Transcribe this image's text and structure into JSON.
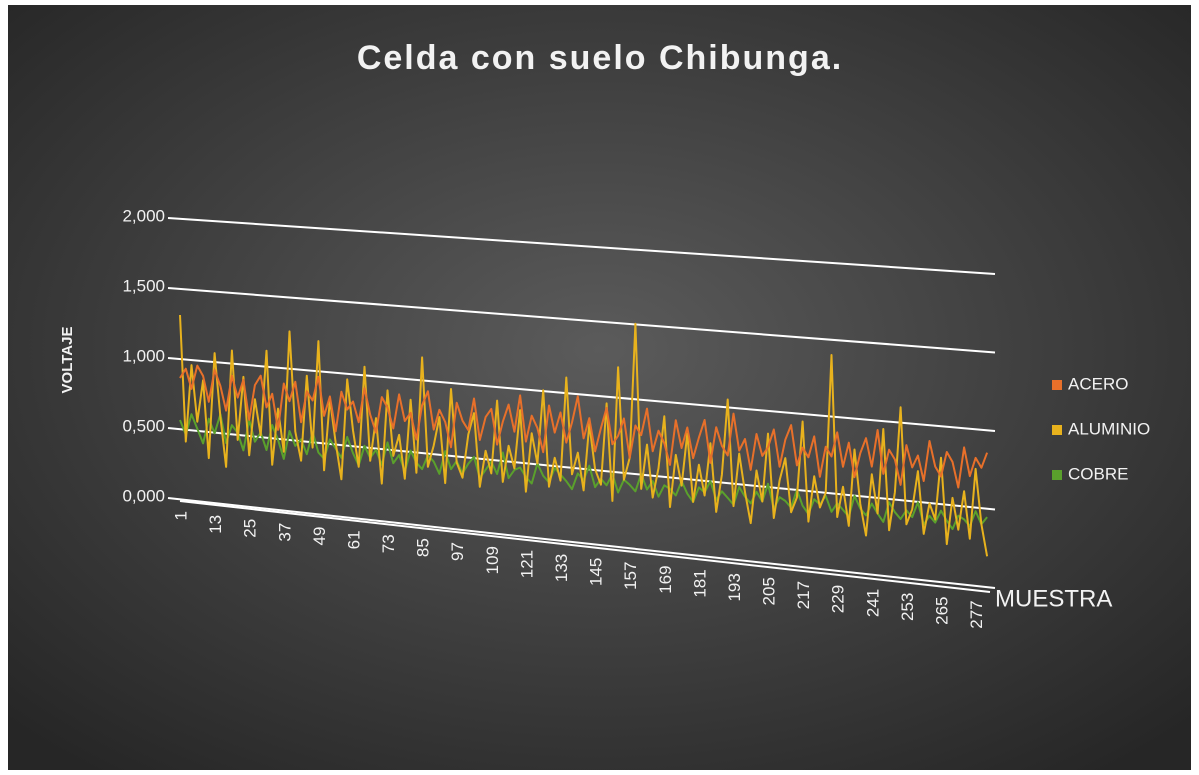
{
  "chart_data": {
    "type": "line",
    "title": "Celda con suelo Chibunga.",
    "y_label": "VOLTAJE",
    "x_label": "MUESTRA",
    "xlim": [
      1,
      282
    ],
    "xticks": [
      1,
      13,
      25,
      37,
      49,
      61,
      73,
      85,
      97,
      109,
      121,
      133,
      145,
      157,
      169,
      181,
      193,
      205,
      217,
      229,
      241,
      253,
      265,
      277
    ],
    "ylim": [
      0,
      2
    ],
    "yticks": [
      {
        "value": 0,
        "label": "0,000"
      },
      {
        "value": 0.5,
        "label": "0,500"
      },
      {
        "value": 1,
        "label": "1,000"
      },
      {
        "value": 1.5,
        "label": "1,500"
      },
      {
        "value": 2,
        "label": "2,000"
      }
    ],
    "grid": true,
    "legend": "right",
    "x": [
      1,
      3,
      5,
      7,
      9,
      11,
      13,
      15,
      17,
      19,
      21,
      23,
      25,
      27,
      29,
      31,
      33,
      35,
      37,
      39,
      41,
      43,
      45,
      47,
      49,
      51,
      53,
      55,
      57,
      59,
      61,
      63,
      65,
      67,
      69,
      71,
      73,
      75,
      77,
      79,
      81,
      83,
      85,
      87,
      89,
      91,
      93,
      95,
      97,
      99,
      101,
      103,
      105,
      107,
      109,
      111,
      113,
      115,
      117,
      119,
      121,
      123,
      125,
      127,
      129,
      131,
      133,
      135,
      137,
      139,
      141,
      143,
      145,
      147,
      149,
      151,
      153,
      155,
      157,
      159,
      161,
      163,
      165,
      167,
      169,
      171,
      173,
      175,
      177,
      179,
      181,
      183,
      185,
      187,
      189,
      191,
      193,
      195,
      197,
      199,
      201,
      203,
      205,
      207,
      209,
      211,
      213,
      215,
      217,
      219,
      221,
      223,
      225,
      227,
      229,
      231,
      233,
      235,
      237,
      239,
      241,
      243,
      245,
      247,
      249,
      251,
      253,
      255,
      257,
      259,
      261,
      263,
      265,
      267,
      269,
      271,
      273,
      275,
      277,
      279,
      281
    ],
    "series": [
      {
        "name": "ACERO",
        "color": "#e8702a",
        "values": [
          0.85,
          0.92,
          0.78,
          0.95,
          0.88,
          0.7,
          0.93,
          0.82,
          0.65,
          0.9,
          0.75,
          0.88,
          0.6,
          0.85,
          0.92,
          0.7,
          0.8,
          0.55,
          0.88,
          0.76,
          0.9,
          0.62,
          0.84,
          0.78,
          0.95,
          0.68,
          0.82,
          0.58,
          0.86,
          0.74,
          0.8,
          0.66,
          0.9,
          0.72,
          0.6,
          0.85,
          0.78,
          0.64,
          0.88,
          0.7,
          0.76,
          0.58,
          0.82,
          0.92,
          0.66,
          0.8,
          0.72,
          0.55,
          0.86,
          0.74,
          0.68,
          0.9,
          0.62,
          0.78,
          0.84,
          0.6,
          0.76,
          0.88,
          0.7,
          0.95,
          0.64,
          0.82,
          0.74,
          0.58,
          0.9,
          0.72,
          0.86,
          0.66,
          0.8,
          0.98,
          0.7,
          0.84,
          0.62,
          0.78,
          0.92,
          0.68,
          0.74,
          0.86,
          0.6,
          0.82,
          0.76,
          0.94,
          0.66,
          0.8,
          0.72,
          0.58,
          0.88,
          0.7,
          0.84,
          0.64,
          0.78,
          0.9,
          0.62,
          0.86,
          0.74,
          0.68,
          0.96,
          0.72,
          0.8,
          0.6,
          0.84,
          0.7,
          0.76,
          0.88,
          0.64,
          0.82,
          0.92,
          0.66,
          0.78,
          0.72,
          0.86,
          0.6,
          0.8,
          0.74,
          0.9,
          0.68,
          0.84,
          0.62,
          0.78,
          0.88,
          0.7,
          0.94,
          0.66,
          0.82,
          0.76,
          0.6,
          0.86,
          0.72,
          0.8,
          0.64,
          0.9,
          0.74,
          0.68,
          0.84,
          0.78,
          0.62,
          0.88,
          0.7,
          0.82,
          0.76,
          0.86
        ]
      },
      {
        "name": "ALUMINIO",
        "color": "#e8b21d",
        "values": [
          1.3,
          0.4,
          0.95,
          0.55,
          0.85,
          0.3,
          1.05,
          0.6,
          0.25,
          1.08,
          0.45,
          0.9,
          0.35,
          0.75,
          0.5,
          1.1,
          0.3,
          0.7,
          0.4,
          1.25,
          0.55,
          0.35,
          0.95,
          0.45,
          1.2,
          0.3,
          0.8,
          0.5,
          0.25,
          0.95,
          0.6,
          0.35,
          1.05,
          0.4,
          0.7,
          0.25,
          0.9,
          0.45,
          0.6,
          0.3,
          0.85,
          0.35,
          1.15,
          0.4,
          0.55,
          0.75,
          0.3,
          0.95,
          0.45,
          0.35,
          0.65,
          0.8,
          0.3,
          0.55,
          0.4,
          0.9,
          0.35,
          0.6,
          0.45,
          0.85,
          0.3,
          0.7,
          0.5,
          1.0,
          0.35,
          0.55,
          0.4,
          1.1,
          0.45,
          0.6,
          0.35,
          0.8,
          0.5,
          0.4,
          0.95,
          0.3,
          1.2,
          0.45,
          0.6,
          1.5,
          0.4,
          0.7,
          0.35,
          0.55,
          0.9,
          0.3,
          0.65,
          0.45,
          0.8,
          0.35,
          0.6,
          0.4,
          0.75,
          0.3,
          0.55,
          1.05,
          0.35,
          0.7,
          0.45,
          0.25,
          0.6,
          0.4,
          0.85,
          0.3,
          0.55,
          0.7,
          0.35,
          0.45,
          0.95,
          0.3,
          0.6,
          0.4,
          0.5,
          1.4,
          0.35,
          0.55,
          0.3,
          0.8,
          0.45,
          0.25,
          0.65,
          0.4,
          0.95,
          0.3,
          0.55,
          1.1,
          0.35,
          0.45,
          0.7,
          0.3,
          0.5,
          0.4,
          0.8,
          0.25,
          0.55,
          0.35,
          0.6,
          0.3,
          0.75,
          0.4,
          0.2
        ]
      },
      {
        "name": "COBRE",
        "color": "#5aa02c",
        "values": [
          0.55,
          0.45,
          0.6,
          0.5,
          0.4,
          0.58,
          0.48,
          0.62,
          0.42,
          0.55,
          0.5,
          0.38,
          0.6,
          0.45,
          0.52,
          0.4,
          0.58,
          0.48,
          0.35,
          0.55,
          0.45,
          0.5,
          0.4,
          0.56,
          0.42,
          0.38,
          0.52,
          0.46,
          0.4,
          0.55,
          0.44,
          0.36,
          0.5,
          0.42,
          0.48,
          0.38,
          0.54,
          0.4,
          0.46,
          0.35,
          0.5,
          0.42,
          0.38,
          0.48,
          0.44,
          0.36,
          0.52,
          0.4,
          0.46,
          0.38,
          0.45,
          0.5,
          0.36,
          0.42,
          0.48,
          0.4,
          0.55,
          0.38,
          0.44,
          0.46,
          0.4,
          0.36,
          0.5,
          0.42,
          0.38,
          0.48,
          0.44,
          0.4,
          0.35,
          0.46,
          0.42,
          0.52,
          0.38,
          0.44,
          0.4,
          0.48,
          0.36,
          0.45,
          0.42,
          0.38,
          0.5,
          0.4,
          0.46,
          0.36,
          0.44,
          0.42,
          0.38,
          0.48,
          0.4,
          0.35,
          0.45,
          0.42,
          0.5,
          0.38,
          0.44,
          0.4,
          0.36,
          0.48,
          0.42,
          0.38,
          0.46,
          0.4,
          0.52,
          0.36,
          0.44,
          0.42,
          0.38,
          0.5,
          0.4,
          0.35,
          0.45,
          0.42,
          0.48,
          0.38,
          0.44,
          0.4,
          0.36,
          0.5,
          0.42,
          0.38,
          0.46,
          0.4,
          0.35,
          0.48,
          0.42,
          0.38,
          0.44,
          0.4,
          0.5,
          0.36,
          0.42,
          0.38,
          0.46,
          0.4,
          0.35,
          0.44,
          0.42,
          0.38,
          0.48,
          0.4,
          0.45
        ]
      }
    ]
  }
}
